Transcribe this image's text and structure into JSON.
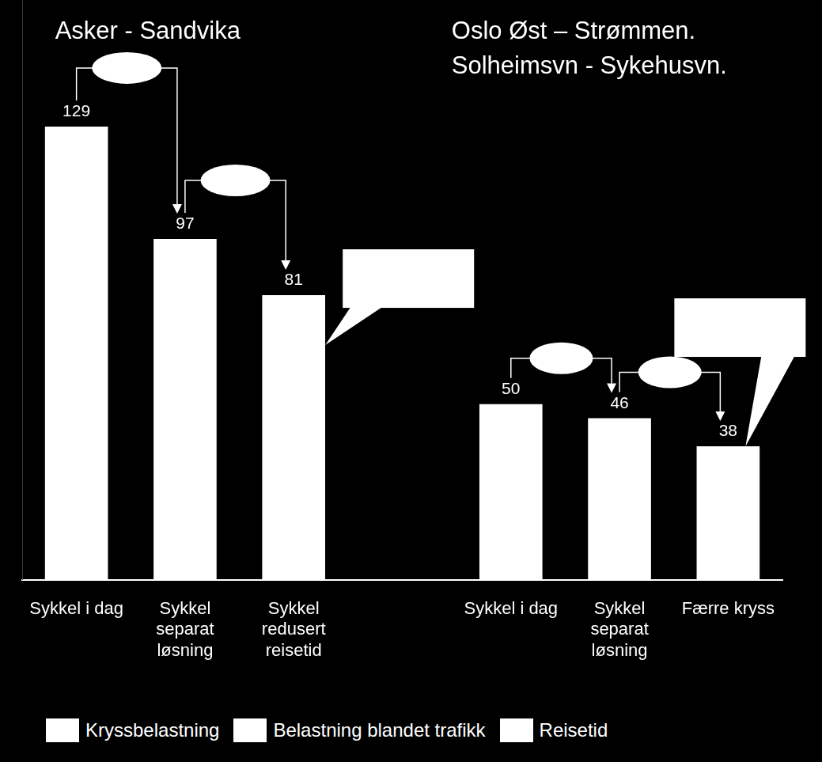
{
  "chart_data": {
    "type": "bar",
    "group_titles": [
      [
        "Asker - Sandvika"
      ],
      [
        "Oslo Øst – Strømmen.",
        "Solheimsvn - Sykehusvn."
      ]
    ],
    "categories": [
      [
        "Sykkel i dag"
      ],
      [
        "Sykkel",
        "separat",
        "løsning"
      ],
      [
        "Sykkel",
        "redusert",
        "reisetid"
      ],
      null,
      [
        "Sykkel i dag"
      ],
      [
        "Sykkel",
        "separat",
        "løsning"
      ],
      [
        "Færre kryss"
      ]
    ],
    "values": [
      129,
      97,
      81,
      null,
      50,
      46,
      38
    ],
    "color": "#ffffff",
    "ylim": [
      0,
      165
    ],
    "tick_labels": "x",
    "grid": false,
    "data_labels": true,
    "legend": "bottom",
    "legend_labels": [
      "Kryssbelastning",
      "Belastning blandet trafikk",
      "Reisetid"
    ]
  }
}
